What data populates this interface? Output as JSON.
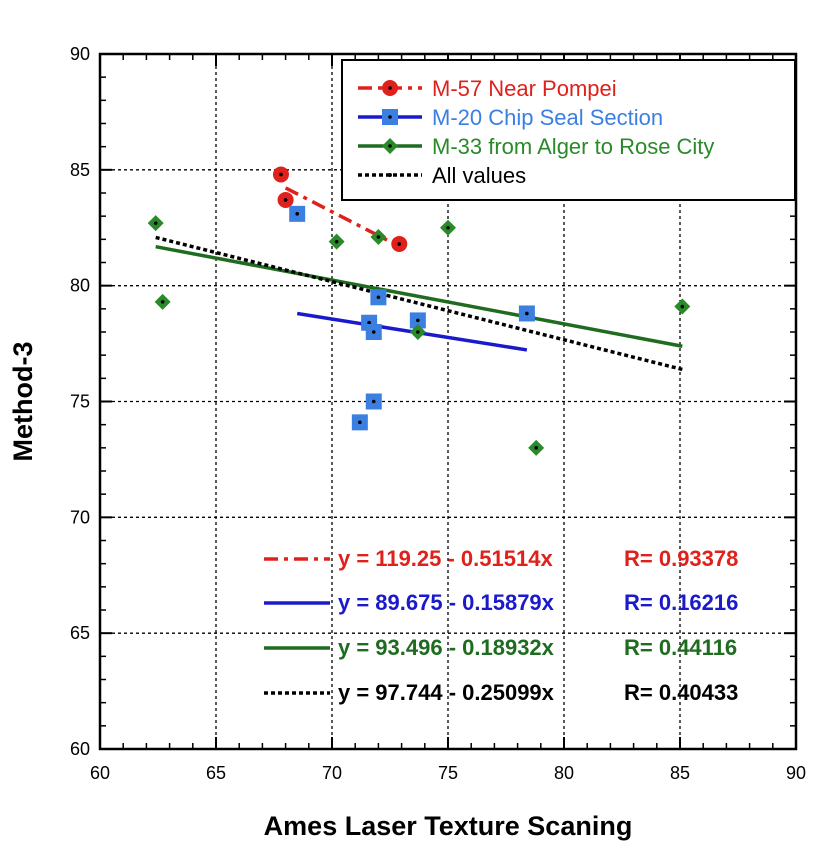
{
  "chart_data": {
    "type": "scatter",
    "xlabel": "Ames Laser Texture Scaning",
    "ylabel": "Method-3",
    "xlim": [
      60,
      90
    ],
    "ylim": [
      60,
      90
    ],
    "xticks": [
      60,
      65,
      70,
      75,
      80,
      85,
      90
    ],
    "yticks": [
      60,
      65,
      70,
      75,
      80,
      85,
      90
    ],
    "xtick_labels": [
      "60",
      "65",
      "70",
      "75",
      "80",
      "85",
      "90"
    ],
    "ytick_labels": [
      "60",
      "65",
      "70",
      "75",
      "80",
      "85",
      "90"
    ],
    "grid": true,
    "legend_position": "top-right",
    "series": [
      {
        "name": "M-57 Near Pompei",
        "color": "#e0201b",
        "marker": "circle",
        "line_style": "dash-dot",
        "points": [
          [
            67.8,
            84.8
          ],
          [
            68.0,
            83.7
          ],
          [
            72.9,
            81.8
          ]
        ],
        "fit": {
          "x": [
            68.0,
            72.9
          ],
          "intercept": 119.25,
          "slope": -0.51514
        },
        "equation": "y = 119.25 - 0.51514x",
        "r_label": "R= 0.93378",
        "equation_color": "#e0201b"
      },
      {
        "name": "M-20 Chip Seal Section",
        "color": "#3b7fe0",
        "marker": "square",
        "line_style": "solid",
        "points": [
          [
            68.5,
            83.1
          ],
          [
            71.2,
            74.1
          ],
          [
            71.6,
            78.4
          ],
          [
            71.8,
            78.0
          ],
          [
            71.8,
            75.0
          ],
          [
            72.0,
            79.5
          ],
          [
            73.7,
            78.5
          ],
          [
            78.4,
            78.8
          ]
        ],
        "fit": {
          "x": [
            68.5,
            78.4
          ],
          "intercept": 89.675,
          "slope": -0.15879
        },
        "equation": "y = 89.675 - 0.15879x",
        "r_label": "R= 0.16216",
        "equation_color": "#1a1acc",
        "fit_color": "#1a1acc"
      },
      {
        "name": "M-33 from Alger to Rose City",
        "color": "#2a8a2a",
        "marker": "diamond",
        "line_style": "solid",
        "points": [
          [
            62.4,
            82.7
          ],
          [
            62.7,
            79.3
          ],
          [
            70.2,
            81.9
          ],
          [
            72.0,
            82.1
          ],
          [
            73.7,
            78.0
          ],
          [
            75.0,
            82.5
          ],
          [
            78.8,
            73.0
          ],
          [
            85.1,
            79.1
          ]
        ],
        "fit": {
          "x": [
            62.4,
            85.1
          ],
          "intercept": 93.496,
          "slope": -0.18932
        },
        "equation": "y = 93.496 - 0.18932x",
        "r_label": "R= 0.44116",
        "equation_color": "#1f6b1f",
        "fit_color": "#1f6b1f"
      },
      {
        "name": "All values",
        "color": "#000000",
        "marker": "none",
        "line_style": "dotted",
        "points": [],
        "fit": {
          "x": [
            62.4,
            85.1
          ],
          "intercept": 97.744,
          "slope": -0.25099
        },
        "equation": "y = 97.744 - 0.25099x",
        "r_label": "R= 0.40433",
        "equation_color": "#000000"
      }
    ]
  }
}
